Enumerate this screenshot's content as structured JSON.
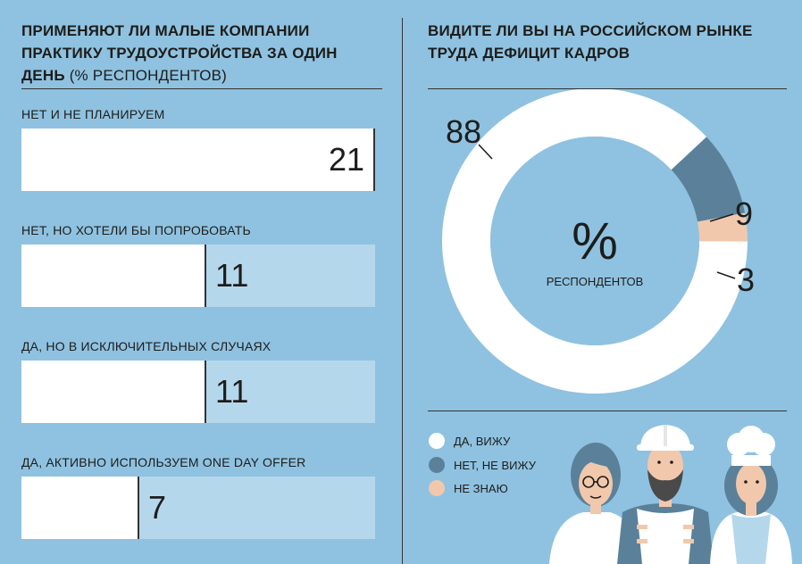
{
  "left": {
    "title_bold": "ПРИМЕНЯЮТ ЛИ МАЛЫЕ КОМПАНИИ ПРАКТИКУ ТРУДОУСТРОЙСТВА ЗА ОДИН ДЕНЬ",
    "title_unit": "(% РЕСПОНДЕНТОВ)"
  },
  "right": {
    "title": "ВИДИТЕ ЛИ ВЫ НА РОССИЙСКОМ РЫНКЕ ТРУДА ДЕФИЦИТ КАДРОВ",
    "center_symbol": "%",
    "center_label": "РЕСПОНДЕНТОВ"
  },
  "legend": [
    {
      "label": "ДА, ВИЖУ",
      "color": "#ffffff"
    },
    {
      "label": "НЕТ, НЕ ВИЖУ",
      "color": "#5a8199"
    },
    {
      "label": "НЕ ЗНАЮ",
      "color": "#f2c8ac"
    }
  ],
  "chart_data": [
    {
      "type": "bar",
      "orientation": "horizontal",
      "title": "ПРИМЕНЯЮТ ЛИ МАЛЫЕ КОМПАНИИ ПРАКТИКУ ТРУДОУСТРОЙСТВА ЗА ОДИН ДЕНЬ (% РЕСПОНДЕНТОВ)",
      "categories": [
        "НЕТ И НЕ ПЛАНИРУЕМ",
        "НЕТ, НО ХОТЕЛИ БЫ ПОПРОБОВАТЬ",
        "ДА, НО В ИСКЛЮЧИТЕЛЬНЫХ СЛУЧАЯХ",
        "ДА, АКТИВНО ИСПОЛЬЗУЕМ ONE DAY OFFER"
      ],
      "values": [
        21,
        11,
        11,
        7
      ],
      "xlim": [
        0,
        21
      ]
    },
    {
      "type": "pie",
      "style": "donut",
      "title": "ВИДИТЕ ЛИ ВЫ НА РОССИЙСКОМ РЫНКЕ ТРУДА ДЕФИЦИТ КАДРОВ",
      "categories": [
        "ДА, ВИЖУ",
        "НЕТ, НЕ ВИЖУ",
        "НЕ ЗНАЮ"
      ],
      "values": [
        88,
        9,
        3
      ],
      "colors": [
        "#ffffff",
        "#5a8199",
        "#f2c8ac"
      ],
      "legend_position": "bottom-left"
    }
  ]
}
